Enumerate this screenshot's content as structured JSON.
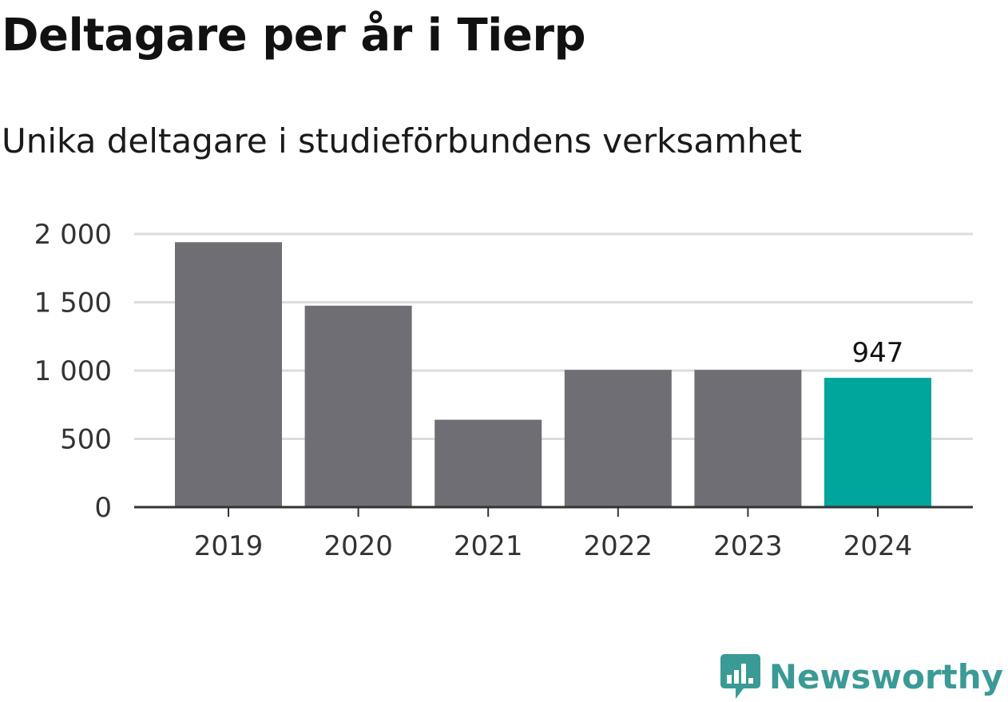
{
  "title": "Deltagare per år i Tierp",
  "subtitle": "Unika deltagare i studieförbundens verksamhet",
  "brand": {
    "name": "Newsworthy",
    "icon": "newsworthy-logo-icon",
    "color": "#3a9a96"
  },
  "colors": {
    "bar": "#6f6e74",
    "highlight": "#00a59b",
    "grid": "#dcdcdc",
    "axis": "#333333"
  },
  "chart_data": {
    "type": "bar",
    "categories": [
      "2019",
      "2020",
      "2021",
      "2022",
      "2023",
      "2024"
    ],
    "values": [
      1940,
      1475,
      640,
      1005,
      1005,
      947
    ],
    "highlight_index": 5,
    "data_labels": [
      {
        "index": 5,
        "text": "947"
      }
    ],
    "y_ticks": [
      {
        "value": 0,
        "label": "0"
      },
      {
        "value": 500,
        "label": "500"
      },
      {
        "value": 1000,
        "label": "1 000"
      },
      {
        "value": 1500,
        "label": "1 500"
      },
      {
        "value": 2000,
        "label": "2 000"
      }
    ],
    "ylim": [
      0,
      2000
    ],
    "grid": true,
    "xlabel": "",
    "ylabel": ""
  }
}
